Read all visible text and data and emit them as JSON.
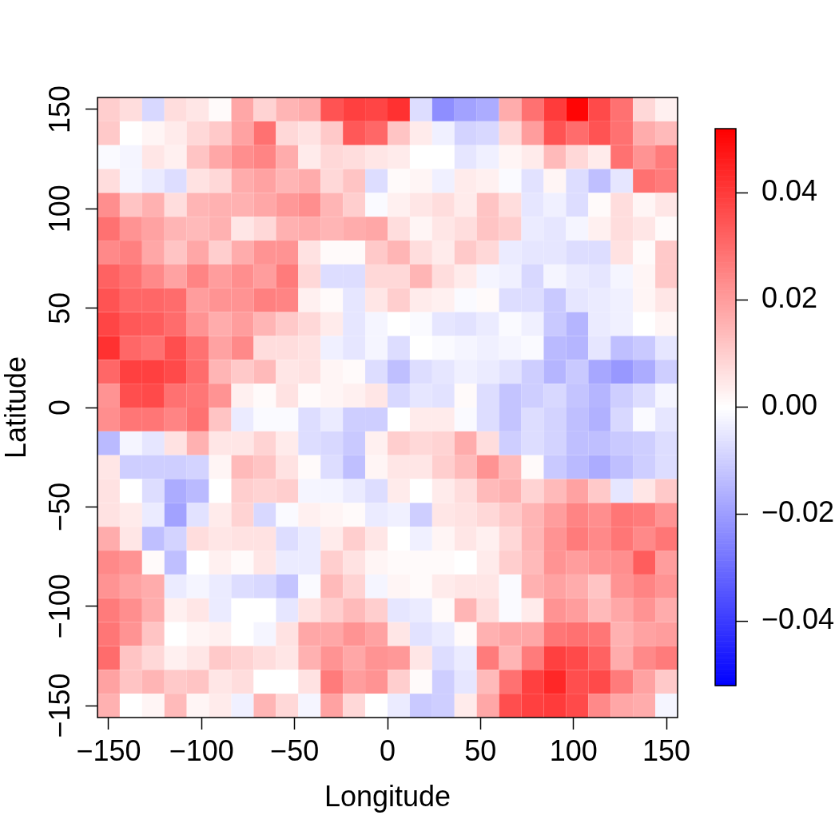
{
  "chart_data": {
    "type": "heatmap",
    "xlabel": "Longitude",
    "ylabel": "Latitude",
    "x": [
      -150,
      -138,
      -126,
      -114,
      -102,
      -90,
      -78,
      -66,
      -54,
      -42,
      -30,
      -18,
      -6,
      6,
      18,
      30,
      42,
      54,
      66,
      78,
      90,
      102,
      114,
      126,
      138,
      150
    ],
    "y": [
      150,
      138,
      126,
      114,
      102,
      90,
      78,
      66,
      54,
      42,
      30,
      18,
      6,
      -6,
      -18,
      -30,
      -42,
      -54,
      -66,
      -78,
      -90,
      -102,
      -114,
      -126,
      -138,
      -150
    ],
    "xlim": [
      -156,
      156
    ],
    "ylim": [
      -156,
      156
    ],
    "xticks": [
      {
        "value": -150,
        "label": "−150"
      },
      {
        "value": -100,
        "label": "−100"
      },
      {
        "value": -50,
        "label": "−50"
      },
      0,
      50,
      100,
      150
    ],
    "yticks": [
      {
        "value": -150,
        "label": "−150"
      },
      {
        "value": -100,
        "label": "−100"
      },
      {
        "value": -50,
        "label": "−50"
      },
      0,
      50,
      100,
      150
    ],
    "clim": [
      -0.052,
      0.052
    ],
    "cticks": [
      {
        "value": -0.04,
        "label": "−0.04"
      },
      {
        "value": -0.02,
        "label": "−0.02"
      },
      {
        "value": 0,
        "label": "0.00"
      },
      0.02,
      0.04
    ],
    "cells": [
      [
        0.01,
        0.007,
        -0.008,
        0.007,
        0.005,
        0.001,
        0.018,
        0.009,
        0.015,
        0.017,
        0.035,
        0.039,
        0.038,
        0.042,
        -0.007,
        -0.023,
        -0.019,
        -0.017,
        0.017,
        0.029,
        0.04,
        0.051,
        0.037,
        0.029,
        0.008,
        0.003
      ],
      [
        0.011,
        0.0,
        0.002,
        0.004,
        0.008,
        0.011,
        0.019,
        0.029,
        0.008,
        0.006,
        0.011,
        0.034,
        0.031,
        0.012,
        0.004,
        -0.003,
        -0.009,
        -0.008,
        0.008,
        0.02,
        0.035,
        0.03,
        0.035,
        0.029,
        0.017,
        0.014
      ],
      [
        -0.001,
        -0.002,
        0.005,
        0.003,
        0.012,
        0.018,
        0.023,
        0.025,
        0.017,
        0.004,
        0.008,
        0.007,
        0.005,
        0.004,
        0.0,
        0.0,
        -0.005,
        -0.003,
        0.002,
        0.004,
        0.014,
        0.008,
        0.004,
        0.029,
        0.022,
        0.027
      ],
      [
        0.007,
        -0.002,
        -0.004,
        -0.007,
        0.006,
        0.008,
        0.017,
        0.019,
        0.015,
        0.017,
        0.008,
        0.012,
        -0.007,
        0.001,
        0.002,
        -0.003,
        0.004,
        0.003,
        -0.001,
        -0.006,
        0.002,
        -0.007,
        -0.013,
        -0.005,
        0.029,
        0.027
      ],
      [
        0.023,
        0.012,
        0.016,
        0.007,
        0.015,
        0.016,
        0.016,
        0.018,
        0.021,
        0.023,
        0.015,
        0.01,
        -0.001,
        0.003,
        0.005,
        0.007,
        0.004,
        0.012,
        0.007,
        -0.005,
        -0.003,
        -0.007,
        0.001,
        0.007,
        0.002,
        0.005
      ],
      [
        0.029,
        0.022,
        0.019,
        0.015,
        0.014,
        0.016,
        0.005,
        0.008,
        0.016,
        0.017,
        0.015,
        0.017,
        0.018,
        0.007,
        0.002,
        0.005,
        0.007,
        0.012,
        0.01,
        -0.004,
        -0.005,
        -0.002,
        0.003,
        0.007,
        0.005,
        0.001
      ],
      [
        0.024,
        0.026,
        0.018,
        0.012,
        0.018,
        0.01,
        0.017,
        0.022,
        0.022,
        0.006,
        0.001,
        0.001,
        0.011,
        0.015,
        0.007,
        0.004,
        0.011,
        0.008,
        -0.004,
        -0.005,
        -0.005,
        -0.007,
        -0.007,
        0.006,
        0.001,
        0.011
      ],
      [
        0.032,
        0.029,
        0.024,
        0.019,
        0.025,
        0.02,
        0.023,
        0.02,
        0.027,
        0.008,
        -0.007,
        -0.007,
        0.008,
        0.008,
        0.015,
        0.007,
        0.004,
        -0.002,
        -0.003,
        -0.008,
        -0.002,
        -0.004,
        -0.005,
        -0.002,
        0.002,
        0.011
      ],
      [
        0.035,
        0.031,
        0.031,
        0.03,
        0.02,
        0.022,
        0.022,
        0.026,
        0.025,
        0.003,
        0.001,
        -0.005,
        0.005,
        0.01,
        0.004,
        0.003,
        -0.001,
        0.001,
        -0.007,
        -0.007,
        -0.011,
        -0.005,
        -0.004,
        -0.003,
        0.002,
        0.005
      ],
      [
        0.038,
        0.034,
        0.033,
        0.03,
        0.022,
        0.017,
        0.02,
        0.015,
        0.011,
        0.008,
        0.004,
        -0.005,
        -0.002,
        0.0,
        -0.001,
        -0.005,
        -0.006,
        -0.004,
        -0.001,
        -0.003,
        -0.011,
        -0.015,
        -0.004,
        -0.003,
        0.0,
        0.002
      ],
      [
        0.042,
        0.031,
        0.029,
        0.036,
        0.029,
        0.019,
        0.024,
        0.007,
        0.007,
        0.006,
        -0.003,
        -0.005,
        -0.002,
        -0.007,
        0.0,
        -0.001,
        -0.002,
        -0.003,
        -0.002,
        -0.001,
        -0.014,
        -0.015,
        -0.005,
        -0.013,
        -0.011,
        -0.005
      ],
      [
        0.031,
        0.039,
        0.039,
        0.037,
        0.03,
        0.015,
        0.011,
        0.014,
        0.005,
        0.006,
        0.002,
        0.001,
        -0.007,
        -0.013,
        -0.007,
        -0.005,
        -0.003,
        -0.004,
        -0.006,
        -0.01,
        -0.015,
        -0.011,
        -0.018,
        -0.021,
        -0.017,
        -0.01
      ],
      [
        0.022,
        0.036,
        0.037,
        0.029,
        0.028,
        0.022,
        0.003,
        0.001,
        0.006,
        0.001,
        0.002,
        0.003,
        0.005,
        -0.008,
        -0.005,
        -0.006,
        0.001,
        -0.007,
        -0.012,
        -0.01,
        -0.008,
        -0.012,
        -0.015,
        -0.01,
        -0.007,
        -0.002
      ],
      [
        0.023,
        0.028,
        0.028,
        0.025,
        0.029,
        0.012,
        -0.004,
        -0.001,
        -0.001,
        -0.007,
        -0.004,
        -0.01,
        -0.01,
        0.0,
        0.004,
        0.004,
        -0.001,
        -0.007,
        -0.012,
        -0.007,
        -0.009,
        -0.013,
        -0.016,
        -0.008,
        -0.001,
        -0.005
      ],
      [
        -0.014,
        -0.002,
        -0.005,
        0.006,
        0.016,
        0.005,
        0.005,
        0.009,
        0.004,
        -0.007,
        -0.008,
        -0.011,
        0.003,
        0.01,
        0.008,
        0.009,
        0.017,
        0.007,
        -0.01,
        -0.007,
        -0.009,
        -0.013,
        -0.013,
        -0.011,
        -0.01,
        -0.007
      ],
      [
        0.005,
        -0.01,
        -0.01,
        -0.01,
        -0.009,
        0.002,
        0.014,
        0.012,
        0.006,
        0.001,
        -0.007,
        -0.013,
        0.002,
        0.005,
        0.005,
        0.01,
        0.014,
        0.022,
        0.014,
        0.001,
        -0.011,
        -0.014,
        -0.017,
        -0.013,
        -0.01,
        -0.007
      ],
      [
        0.006,
        0.0,
        -0.007,
        -0.017,
        -0.014,
        0.0,
        0.01,
        0.009,
        0.01,
        -0.002,
        -0.002,
        -0.004,
        -0.007,
        0.004,
        0.0,
        0.004,
        0.007,
        0.014,
        0.016,
        0.009,
        0.014,
        0.019,
        0.011,
        -0.005,
        0.005,
        0.011
      ],
      [
        0.006,
        0.004,
        -0.004,
        -0.019,
        -0.006,
        0.004,
        0.009,
        -0.008,
        -0.001,
        0.003,
        0.002,
        0.001,
        -0.004,
        -0.003,
        -0.01,
        0.005,
        0.006,
        0.008,
        0.011,
        0.015,
        0.02,
        0.025,
        0.023,
        0.028,
        0.027,
        0.022
      ],
      [
        0.017,
        0.005,
        -0.013,
        -0.009,
        0.007,
        0.005,
        0.006,
        0.006,
        -0.007,
        -0.004,
        0.004,
        0.01,
        0.005,
        0.0,
        -0.003,
        0.002,
        0.005,
        0.003,
        0.008,
        0.015,
        0.022,
        0.027,
        0.024,
        0.028,
        0.024,
        0.028
      ],
      [
        0.024,
        0.022,
        0.001,
        -0.013,
        0.0,
        0.003,
        0.001,
        0.005,
        -0.004,
        -0.004,
        0.01,
        0.006,
        0.002,
        0.001,
        0.001,
        0.001,
        0.0,
        0.004,
        0.01,
        0.014,
        0.022,
        0.02,
        0.022,
        0.023,
        0.033,
        0.02
      ],
      [
        0.022,
        0.019,
        0.017,
        -0.004,
        -0.002,
        -0.004,
        -0.007,
        -0.008,
        -0.012,
        -0.001,
        0.014,
        0.009,
        -0.002,
        0.002,
        0.001,
        0.004,
        0.005,
        0.005,
        -0.001,
        0.016,
        0.019,
        0.017,
        0.012,
        0.022,
        0.025,
        0.022
      ],
      [
        0.027,
        0.023,
        0.017,
        0.003,
        0.005,
        -0.004,
        0.0,
        0.0,
        -0.005,
        0.006,
        0.01,
        0.014,
        0.01,
        -0.005,
        -0.004,
        0.001,
        0.015,
        0.007,
        -0.001,
        0.004,
        0.022,
        0.02,
        0.014,
        0.018,
        0.022,
        0.017
      ],
      [
        0.028,
        0.022,
        0.012,
        0.0,
        0.002,
        0.003,
        0.0,
        -0.002,
        0.006,
        0.018,
        0.018,
        0.022,
        0.019,
        0.005,
        -0.006,
        -0.004,
        0.001,
        0.016,
        0.018,
        0.018,
        0.028,
        0.029,
        0.028,
        0.016,
        0.019,
        0.02
      ],
      [
        0.03,
        0.012,
        0.008,
        0.003,
        0.005,
        0.011,
        0.009,
        0.007,
        0.005,
        0.016,
        0.022,
        0.018,
        0.022,
        0.021,
        0.005,
        -0.007,
        -0.004,
        0.027,
        0.015,
        0.027,
        0.039,
        0.037,
        0.032,
        0.017,
        0.024,
        0.027
      ],
      [
        0.019,
        0.012,
        0.015,
        0.011,
        0.012,
        0.005,
        0.007,
        0.0,
        0.0,
        0.006,
        0.027,
        0.02,
        0.022,
        0.01,
        0.001,
        -0.01,
        -0.005,
        0.014,
        0.029,
        0.039,
        0.044,
        0.036,
        0.037,
        0.027,
        0.019,
        0.011
      ],
      [
        0.016,
        0.0,
        0.002,
        0.014,
        0.002,
        0.004,
        -0.003,
        0.015,
        0.008,
        -0.002,
        0.019,
        0.008,
        0.0,
        -0.004,
        -0.011,
        -0.01,
        0.004,
        0.018,
        0.036,
        0.039,
        0.04,
        0.037,
        0.024,
        0.018,
        0.017,
        -0.002
      ]
    ]
  }
}
